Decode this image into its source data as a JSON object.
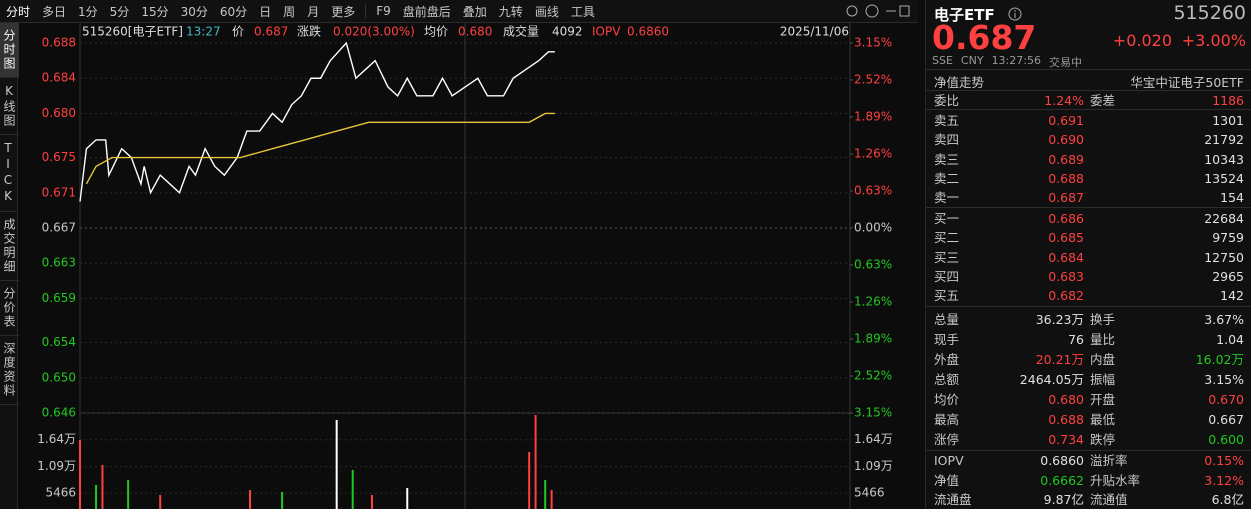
{
  "toolbar": {
    "periods": [
      "分时",
      "多日",
      "1分",
      "5分",
      "15分",
      "30分",
      "60分",
      "日",
      "周",
      "月",
      "更多"
    ],
    "tools": [
      "F9",
      "盘前盘后",
      "叠加",
      "九转",
      "画线",
      "工具"
    ]
  },
  "side_tabs": [
    "分时图",
    "K线图",
    "TICK",
    "成交明细",
    "分价表",
    "深度资料"
  ],
  "info_line": {
    "symbol": "515260[电子ETF]",
    "time": "13:27",
    "price_label": "价",
    "price": "0.687",
    "change_label": "涨跌",
    "change": "0.020(3.00%)",
    "avg_label": "均价",
    "avg": "0.680",
    "volume_label": "成交量",
    "volume": "4092",
    "iopv_label": "IOPV",
    "iopv": "0.6860",
    "date": "2025/11/06"
  },
  "chart_data": [
    {
      "type": "line",
      "xlim": [
        0,
        240
      ],
      "ylim": [
        0.646,
        0.688
      ],
      "yticks": [
        0.688,
        0.684,
        {
          "value": 0.68,
          "label": "0.680"
        },
        0.675,
        0.671,
        0.667,
        0.663,
        0.659,
        0.654,
        {
          "value": 0.65,
          "label": "0.650"
        },
        0.646
      ],
      "y2lim": [
        -3.15,
        3.15
      ],
      "y2ticks": [
        {
          "value": 3.15,
          "label": "3.15%"
        },
        {
          "value": 2.52,
          "label": "2.52%"
        },
        {
          "value": 1.89,
          "label": "1.89%"
        },
        {
          "value": 1.26,
          "label": "1.26%"
        },
        {
          "value": 0.63,
          "label": "0.63%"
        },
        {
          "value": 0,
          "label": "0.00%"
        },
        {
          "value": -0.63,
          "label": "0.63%"
        },
        {
          "value": -1.26,
          "label": "1.26%"
        },
        {
          "value": -1.89,
          "label": "1.89%"
        },
        {
          "value": -2.52,
          "label": "2.52%"
        },
        {
          "value": -3.15,
          "label": "3.15%"
        }
      ],
      "up_color": "#ff4040",
      "down_color": "#22c722",
      "flat_color": "#c8c8c8",
      "grid": true,
      "series": [
        {
          "color": "#ffffff",
          "x": [
            0,
            2,
            5,
            8,
            9,
            13,
            16,
            19,
            20,
            22,
            25,
            28,
            31,
            34,
            36,
            39,
            42,
            45,
            49,
            52,
            56,
            60,
            63,
            66,
            69,
            72,
            75,
            78,
            83,
            86,
            89,
            92,
            96,
            99,
            102,
            105,
            110,
            113,
            116,
            120,
            124,
            127,
            132,
            135,
            139,
            143,
            146,
            148
          ],
          "values": [
            0.67,
            0.676,
            0.677,
            0.677,
            0.673,
            0.676,
            0.675,
            0.672,
            0.674,
            0.671,
            0.673,
            0.672,
            0.671,
            0.674,
            0.673,
            0.676,
            0.674,
            0.673,
            0.675,
            0.678,
            0.678,
            0.68,
            0.679,
            0.681,
            0.682,
            0.684,
            0.684,
            0.686,
            0.688,
            0.684,
            0.685,
            0.686,
            0.683,
            0.682,
            0.684,
            0.682,
            0.682,
            0.684,
            0.682,
            0.683,
            0.684,
            0.682,
            0.682,
            0.684,
            0.685,
            0.686,
            0.687,
            0.687
          ]
        },
        {
          "color": "#e8c43a",
          "x": [
            2,
            5,
            10,
            20,
            35,
            50,
            60,
            70,
            80,
            90,
            100,
            110,
            120,
            130,
            140,
            145,
            148
          ],
          "values": [
            0.672,
            0.674,
            0.675,
            0.675,
            0.675,
            0.675,
            0.676,
            0.677,
            0.678,
            0.679,
            0.679,
            0.679,
            0.679,
            0.679,
            0.679,
            0.68,
            0.68
          ]
        }
      ]
    },
    {
      "type": "bar",
      "xlim": [
        0,
        240
      ],
      "ylim": [
        0,
        21860
      ],
      "yticks": [
        {
          "value": 16400,
          "label": "1.64万"
        },
        {
          "value": 10900,
          "label": "1.09万"
        },
        5466
      ],
      "x": [
        0,
        5,
        7,
        15,
        25,
        53,
        63,
        80,
        85,
        91,
        102,
        140,
        142,
        145,
        147
      ],
      "values": [
        16340,
        7150,
        11240,
        8170,
        5110,
        6130,
        5720,
        20430,
        10220,
        5110,
        6540,
        13890,
        21450,
        8170,
        6130
      ],
      "colors": [
        "#ff4040",
        "#22c722",
        "#ff4040",
        "#22c722",
        "#ff4040",
        "#ff4040",
        "#22c722",
        "#ffffff",
        "#22c722",
        "#ff4040",
        "#ffffff",
        "#ff4040",
        "#ff4040",
        "#22c722",
        "#ff4040"
      ]
    }
  ],
  "quote_panel": {
    "name": "电子ETF",
    "code": "515260",
    "price": "0.687",
    "change": "+0.020",
    "change_pct": "+3.00%",
    "meta": [
      "SSE",
      "CNY",
      "13:27:56",
      "交易中"
    ],
    "nav_trend": "净值走势",
    "fund_name": "华宝中证电子50ETF",
    "commission": {
      "label": "委比",
      "value": "1.24%",
      "label2": "委差",
      "value2": "1186"
    },
    "asks": [
      {
        "label": "卖五",
        "price": "0.691",
        "volume": "1301"
      },
      {
        "label": "卖四",
        "price": "0.690",
        "volume": "21792"
      },
      {
        "label": "卖三",
        "price": "0.689",
        "volume": "10343"
      },
      {
        "label": "卖二",
        "price": "0.688",
        "volume": "13524"
      },
      {
        "label": "卖一",
        "price": "0.687",
        "volume": "154"
      }
    ],
    "bids": [
      {
        "label": "买一",
        "price": "0.686",
        "volume": "22684"
      },
      {
        "label": "买二",
        "price": "0.685",
        "volume": "9759"
      },
      {
        "label": "买三",
        "price": "0.684",
        "volume": "12750"
      },
      {
        "label": "买四",
        "price": "0.683",
        "volume": "2965"
      },
      {
        "label": "买五",
        "price": "0.682",
        "volume": "142"
      }
    ],
    "stats": [
      {
        "label": "总量",
        "value": "36.23万",
        "color": "#e0e0e0",
        "label2": "换手",
        "value2": "3.67%",
        "color2": "#e0e0e0"
      },
      {
        "label": "现手",
        "value": "76",
        "color": "#e0e0e0",
        "label2": "量比",
        "value2": "1.04",
        "color2": "#e0e0e0"
      },
      {
        "label": "外盘",
        "value": "20.21万",
        "color": "#ff4040",
        "label2": "内盘",
        "value2": "16.02万",
        "color2": "#22c722"
      },
      {
        "label": "总额",
        "value": "2464.05万",
        "color": "#e0e0e0",
        "label2": "振幅",
        "value2": "3.15%",
        "color2": "#e0e0e0"
      },
      {
        "label": "均价",
        "value": "0.680",
        "color": "#ff4040",
        "label2": "开盘",
        "value2": "0.670",
        "color2": "#ff4040"
      },
      {
        "label": "最高",
        "value": "0.688",
        "color": "#ff4040",
        "label2": "最低",
        "value2": "0.667",
        "color2": "#e0e0e0"
      },
      {
        "label": "涨停",
        "value": "0.734",
        "color": "#ff4040",
        "label2": "跌停",
        "value2": "0.600",
        "color2": "#22c722"
      }
    ],
    "fund": [
      {
        "label": "IOPV",
        "value": "0.6860",
        "color": "#e0e0e0",
        "label2": "溢折率",
        "value2": "0.15%",
        "color2": "#ff4040"
      },
      {
        "label": "净值",
        "value": "0.6662",
        "color": "#22c722",
        "label2": "升贴水率",
        "value2": "3.12%",
        "color2": "#ff4040"
      },
      {
        "label": "流通盘",
        "value": "9.87亿",
        "color": "#e0e0e0",
        "label2": "流通值",
        "value2": "6.8亿",
        "color2": "#e0e0e0"
      }
    ]
  }
}
